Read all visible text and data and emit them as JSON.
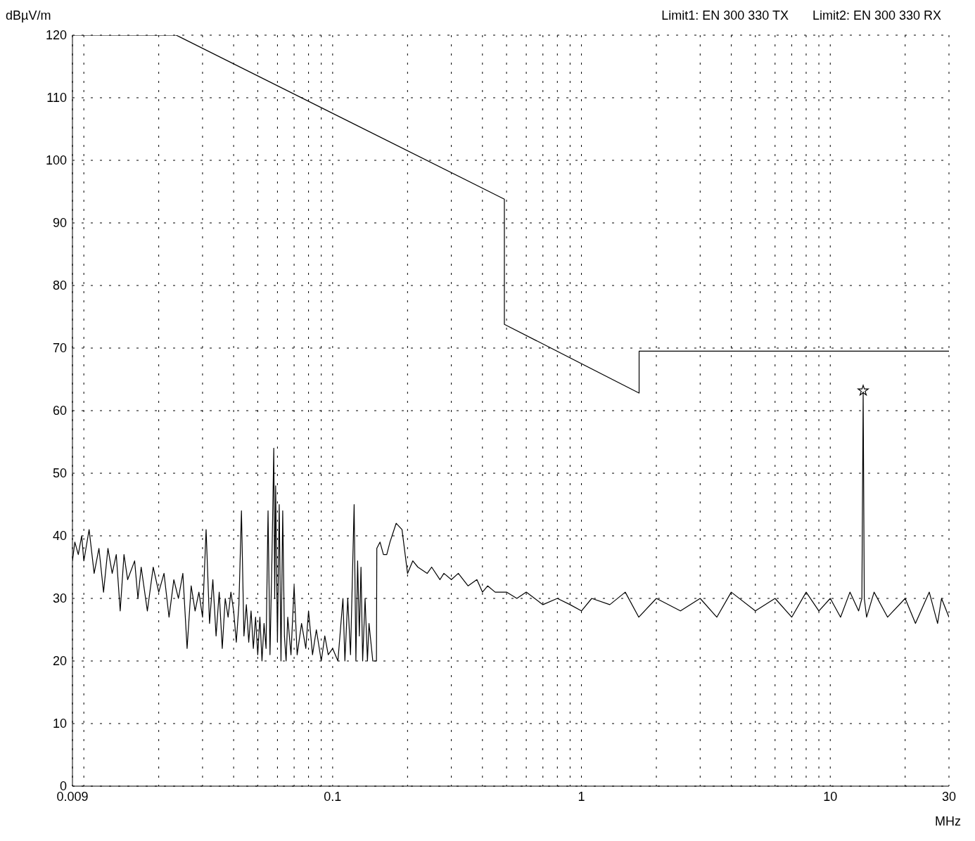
{
  "chart_data": {
    "type": "line",
    "annotations": [
      "Limit1: EN 300 330 TX",
      "Limit2: EN 300 330 RX"
    ],
    "ylabel": "dBµV/m",
    "xlabel": "MHz",
    "log": "x",
    "grid": true,
    "legend": false,
    "marker": "none",
    "xlim": [
      0.009,
      30
    ],
    "ylim": [
      0,
      120
    ],
    "xticks": [
      0.009,
      {
        "value": 0.01,
        "label": null
      },
      {
        "value": 0.02,
        "label": null
      },
      {
        "value": 0.03,
        "label": null
      },
      {
        "value": 0.04,
        "label": null
      },
      {
        "value": 0.05,
        "label": null
      },
      {
        "value": 0.06,
        "label": null
      },
      {
        "value": 0.07,
        "label": null
      },
      {
        "value": 0.08,
        "label": null
      },
      {
        "value": 0.09,
        "label": null
      },
      0.1,
      {
        "value": 0.2,
        "label": null
      },
      {
        "value": 0.3,
        "label": null
      },
      {
        "value": 0.4,
        "label": null
      },
      {
        "value": 0.5,
        "label": null
      },
      {
        "value": 0.6,
        "label": null
      },
      {
        "value": 0.7,
        "label": null
      },
      {
        "value": 0.8,
        "label": null
      },
      {
        "value": 0.9,
        "label": null
      },
      1,
      {
        "value": 2,
        "label": null
      },
      {
        "value": 3,
        "label": null
      },
      {
        "value": 4,
        "label": null
      },
      {
        "value": 5,
        "label": null
      },
      {
        "value": 6,
        "label": null
      },
      {
        "value": 7,
        "label": null
      },
      {
        "value": 8,
        "label": null
      },
      {
        "value": 9,
        "label": null
      },
      10,
      {
        "value": 20,
        "label": null
      },
      30
    ],
    "yticks": [
      0,
      10,
      20,
      30,
      40,
      50,
      60,
      70,
      80,
      90,
      100,
      110,
      120
    ],
    "series": [
      {
        "color": "#000000",
        "x": [
          0.009,
          0.0092,
          0.0095,
          0.0098,
          0.01,
          0.0105,
          0.011,
          0.0115,
          0.012,
          0.0125,
          0.013,
          0.0135,
          0.014,
          0.0145,
          0.015,
          0.016,
          0.0165,
          0.017,
          0.018,
          0.019,
          0.02,
          0.021,
          0.022,
          0.023,
          0.024,
          0.025,
          0.026,
          0.027,
          0.028,
          0.029,
          0.03,
          0.031,
          0.032,
          0.033,
          0.034,
          0.035,
          0.036,
          0.037,
          0.038,
          0.039,
          0.04,
          0.041,
          0.042,
          0.043,
          0.044,
          0.045,
          0.046,
          0.047,
          0.048,
          0.049,
          0.05,
          0.051,
          0.052,
          0.053,
          0.054,
          0.055,
          0.056,
          0.057,
          0.058,
          0.0585,
          0.059,
          0.06,
          0.061,
          0.062,
          0.063,
          0.064,
          0.065,
          0.066,
          0.068,
          0.07,
          0.072,
          0.075,
          0.078,
          0.08,
          0.083,
          0.086,
          0.09,
          0.093,
          0.096,
          0.1,
          0.105,
          0.11,
          0.112,
          0.115,
          0.118,
          0.12,
          0.122,
          0.124,
          0.126,
          0.128,
          0.13,
          0.132,
          0.135,
          0.138,
          0.14,
          0.145,
          0.15,
          0.1505,
          0.155,
          0.16,
          0.165,
          0.17,
          0.18,
          0.19,
          0.2,
          0.21,
          0.22,
          0.24,
          0.25,
          0.27,
          0.28,
          0.3,
          0.32,
          0.35,
          0.38,
          0.4,
          0.42,
          0.45,
          0.5,
          0.55,
          0.6,
          0.7,
          0.8,
          0.9,
          1,
          1.1,
          1.3,
          1.5,
          1.7,
          2,
          2.5,
          3,
          3.5,
          4,
          5,
          6,
          7,
          8,
          9,
          10,
          11,
          12,
          13,
          13.4,
          13.56,
          13.7,
          14,
          15,
          17,
          20,
          22,
          25,
          27,
          28,
          30
        ],
        "values": [
          36,
          39,
          37,
          40,
          36,
          41,
          34,
          38,
          31,
          38,
          34,
          37,
          28,
          37,
          33,
          36,
          30,
          35,
          28,
          35,
          31,
          34,
          27,
          33,
          30,
          34,
          22,
          32,
          28,
          31,
          27,
          41,
          26,
          33,
          24,
          31,
          22,
          30,
          27,
          31,
          28,
          23,
          29,
          44,
          24,
          29,
          23,
          28,
          22,
          27,
          21,
          27,
          20,
          26,
          22,
          44,
          21,
          36,
          54,
          30,
          48,
          23,
          45,
          20,
          44,
          24,
          20,
          27,
          21,
          32,
          21,
          26,
          22,
          28,
          21,
          25,
          20,
          24,
          21,
          22,
          20,
          30,
          20,
          30,
          21,
          33,
          45,
          20,
          36,
          24,
          35,
          20,
          30,
          20,
          26,
          20,
          20,
          38,
          39,
          37,
          37,
          39,
          42,
          41,
          34,
          36,
          35,
          34,
          35,
          33,
          34,
          33,
          34,
          32,
          33,
          31,
          32,
          31,
          31,
          30,
          31,
          29,
          30,
          29,
          28,
          30,
          29,
          31,
          27,
          30,
          28,
          30,
          27,
          31,
          28,
          30,
          27,
          31,
          28,
          30,
          27,
          31,
          28,
          30,
          63,
          30,
          27,
          31,
          27,
          30,
          26,
          31,
          26,
          30,
          27
        ]
      },
      {
        "color": "#000000",
        "x": [
          0.009,
          0.0235,
          0.49,
          0.49,
          1.705,
          1.705,
          30
        ],
        "values": [
          120,
          120,
          93.8,
          73.8,
          62.8,
          69.5,
          69.5
        ]
      },
      {
        "type": "scatter",
        "marker": "star",
        "color": "#000000",
        "x": [
          13.56
        ],
        "values": [
          63.2
        ]
      }
    ]
  }
}
